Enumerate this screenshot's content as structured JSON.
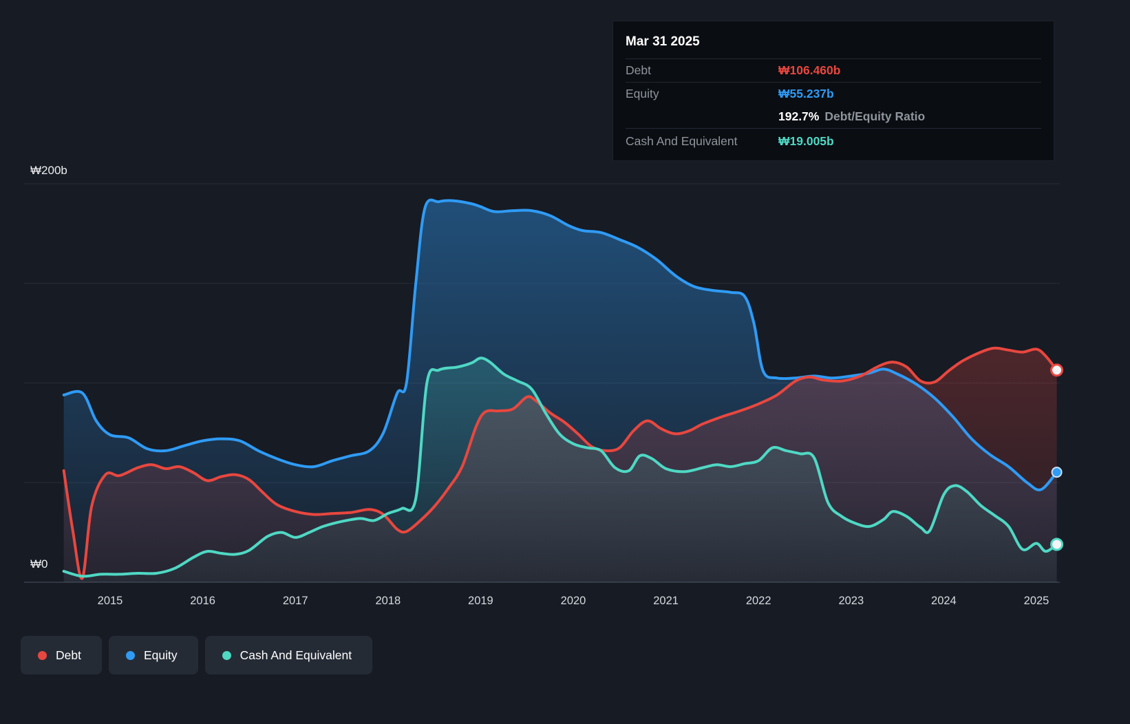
{
  "colors": {
    "debt": "#e8473f",
    "equity": "#2f9bf5",
    "cash": "#4fd8c4",
    "background": "#171b24",
    "tooltip_bg": "#0a0d12",
    "grid": "#262c35"
  },
  "tooltip": {
    "date": "Mar 31 2025",
    "debt": {
      "label": "Debt",
      "value": "₩106.460b"
    },
    "equity": {
      "label": "Equity",
      "value": "₩55.237b"
    },
    "ratio": {
      "value": "192.7%",
      "label": "Debt/Equity Ratio"
    },
    "cash": {
      "label": "Cash And Equivalent",
      "value": "₩19.005b"
    }
  },
  "y_axis": {
    "top_label": "₩200b",
    "bottom_label": "₩0"
  },
  "legend": {
    "items": [
      {
        "key": "debt",
        "label": "Debt"
      },
      {
        "key": "equity",
        "label": "Equity"
      },
      {
        "key": "cash",
        "label": "Cash And Equivalent"
      }
    ]
  },
  "chart_data": {
    "type": "area",
    "unit": "₩ billions (KRW)",
    "x_ticks": [
      2015,
      2016,
      2017,
      2018,
      2019,
      2020,
      2021,
      2022,
      2023,
      2024,
      2025
    ],
    "y_ticks": [
      0,
      50,
      100,
      150,
      200
    ],
    "ylim": [
      0,
      200
    ],
    "xlim": [
      2014.45,
      2025.3
    ],
    "legend_position": "bottom-left",
    "grid": true,
    "series": [
      {
        "name": "Equity",
        "color_key": "equity",
        "end_value": 55.237,
        "points": [
          [
            2014.5,
            94
          ],
          [
            2014.7,
            95
          ],
          [
            2014.85,
            81
          ],
          [
            2015.0,
            74
          ],
          [
            2015.2,
            72.5
          ],
          [
            2015.4,
            67
          ],
          [
            2015.6,
            66
          ],
          [
            2015.8,
            68.5
          ],
          [
            2016.0,
            71
          ],
          [
            2016.2,
            72
          ],
          [
            2016.4,
            71
          ],
          [
            2016.6,
            66
          ],
          [
            2016.8,
            62
          ],
          [
            2017.0,
            59
          ],
          [
            2017.2,
            58
          ],
          [
            2017.4,
            61
          ],
          [
            2017.6,
            63.5
          ],
          [
            2017.8,
            66
          ],
          [
            2017.95,
            75
          ],
          [
            2018.1,
            95
          ],
          [
            2018.2,
            100
          ],
          [
            2018.3,
            150
          ],
          [
            2018.4,
            188
          ],
          [
            2018.55,
            191
          ],
          [
            2018.7,
            191.5
          ],
          [
            2018.9,
            190
          ],
          [
            2019.0,
            188.5
          ],
          [
            2019.15,
            186
          ],
          [
            2019.35,
            186.5
          ],
          [
            2019.55,
            186.5
          ],
          [
            2019.75,
            184
          ],
          [
            2019.95,
            179
          ],
          [
            2020.1,
            176.5
          ],
          [
            2020.3,
            175.5
          ],
          [
            2020.5,
            172
          ],
          [
            2020.7,
            168
          ],
          [
            2020.9,
            162
          ],
          [
            2021.1,
            154
          ],
          [
            2021.3,
            148.5
          ],
          [
            2021.5,
            146.5
          ],
          [
            2021.7,
            145.5
          ],
          [
            2021.85,
            143.5
          ],
          [
            2021.95,
            130
          ],
          [
            2022.05,
            106
          ],
          [
            2022.2,
            102.5
          ],
          [
            2022.4,
            102.5
          ],
          [
            2022.6,
            103.5
          ],
          [
            2022.8,
            102.5
          ],
          [
            2023.0,
            103.5
          ],
          [
            2023.2,
            105
          ],
          [
            2023.35,
            107
          ],
          [
            2023.5,
            104.5
          ],
          [
            2023.7,
            99.5
          ],
          [
            2023.9,
            92.5
          ],
          [
            2024.1,
            83
          ],
          [
            2024.3,
            72
          ],
          [
            2024.5,
            64
          ],
          [
            2024.7,
            58
          ],
          [
            2024.9,
            50
          ],
          [
            2025.05,
            46.5
          ],
          [
            2025.22,
            55.237
          ]
        ]
      },
      {
        "name": "Debt",
        "color_key": "debt",
        "end_value": 106.46,
        "points": [
          [
            2014.5,
            56
          ],
          [
            2014.6,
            25
          ],
          [
            2014.7,
            2
          ],
          [
            2014.8,
            38
          ],
          [
            2014.95,
            54
          ],
          [
            2015.1,
            53.5
          ],
          [
            2015.3,
            57.5
          ],
          [
            2015.45,
            59
          ],
          [
            2015.6,
            57
          ],
          [
            2015.75,
            58
          ],
          [
            2015.9,
            55
          ],
          [
            2016.05,
            51
          ],
          [
            2016.2,
            53
          ],
          [
            2016.35,
            54
          ],
          [
            2016.5,
            51.5
          ],
          [
            2016.65,
            45
          ],
          [
            2016.8,
            39
          ],
          [
            2017.0,
            35.5
          ],
          [
            2017.2,
            34
          ],
          [
            2017.4,
            34.5
          ],
          [
            2017.6,
            35
          ],
          [
            2017.8,
            36.5
          ],
          [
            2017.95,
            34
          ],
          [
            2018.1,
            26.5
          ],
          [
            2018.2,
            25.5
          ],
          [
            2018.35,
            31
          ],
          [
            2018.5,
            38
          ],
          [
            2018.65,
            47
          ],
          [
            2018.8,
            58
          ],
          [
            2018.95,
            78
          ],
          [
            2019.05,
            85.5
          ],
          [
            2019.2,
            86
          ],
          [
            2019.35,
            87
          ],
          [
            2019.5,
            93
          ],
          [
            2019.6,
            91
          ],
          [
            2019.75,
            85
          ],
          [
            2019.9,
            80.5
          ],
          [
            2020.05,
            74.5
          ],
          [
            2020.2,
            68
          ],
          [
            2020.35,
            66
          ],
          [
            2020.5,
            67.5
          ],
          [
            2020.65,
            76
          ],
          [
            2020.8,
            81
          ],
          [
            2020.95,
            77
          ],
          [
            2021.1,
            74.5
          ],
          [
            2021.25,
            76
          ],
          [
            2021.4,
            79.5
          ],
          [
            2021.6,
            83
          ],
          [
            2021.8,
            86
          ],
          [
            2022.0,
            89.5
          ],
          [
            2022.2,
            94
          ],
          [
            2022.4,
            101
          ],
          [
            2022.55,
            103
          ],
          [
            2022.7,
            101.5
          ],
          [
            2022.9,
            101
          ],
          [
            2023.1,
            103.5
          ],
          [
            2023.3,
            108.5
          ],
          [
            2023.45,
            110.5
          ],
          [
            2023.6,
            108
          ],
          [
            2023.75,
            101
          ],
          [
            2023.9,
            100.5
          ],
          [
            2024.05,
            106
          ],
          [
            2024.2,
            111
          ],
          [
            2024.4,
            115.5
          ],
          [
            2024.55,
            117.5
          ],
          [
            2024.7,
            116.5
          ],
          [
            2024.85,
            115.5
          ],
          [
            2025.0,
            117
          ],
          [
            2025.1,
            113.5
          ],
          [
            2025.22,
            106.46
          ]
        ]
      },
      {
        "name": "Cash And Equivalent",
        "color_key": "cash",
        "end_value": 19.005,
        "points": [
          [
            2014.5,
            5.5
          ],
          [
            2014.7,
            3
          ],
          [
            2014.9,
            4
          ],
          [
            2015.1,
            4
          ],
          [
            2015.3,
            4.5
          ],
          [
            2015.5,
            4.5
          ],
          [
            2015.7,
            7
          ],
          [
            2015.9,
            12.5
          ],
          [
            2016.05,
            15.5
          ],
          [
            2016.2,
            14.5
          ],
          [
            2016.35,
            14
          ],
          [
            2016.5,
            16
          ],
          [
            2016.7,
            23
          ],
          [
            2016.85,
            25
          ],
          [
            2017.0,
            22.5
          ],
          [
            2017.15,
            25
          ],
          [
            2017.3,
            28
          ],
          [
            2017.5,
            30.5
          ],
          [
            2017.7,
            32
          ],
          [
            2017.85,
            31
          ],
          [
            2018.0,
            34.5
          ],
          [
            2018.15,
            37
          ],
          [
            2018.3,
            42
          ],
          [
            2018.42,
            100
          ],
          [
            2018.55,
            106.5
          ],
          [
            2018.75,
            108
          ],
          [
            2018.9,
            110
          ],
          [
            2019.0,
            112.5
          ],
          [
            2019.1,
            110.5
          ],
          [
            2019.25,
            104.5
          ],
          [
            2019.4,
            101
          ],
          [
            2019.55,
            97
          ],
          [
            2019.7,
            85
          ],
          [
            2019.85,
            74.5
          ],
          [
            2020.0,
            69.5
          ],
          [
            2020.15,
            67.5
          ],
          [
            2020.3,
            66
          ],
          [
            2020.45,
            57.5
          ],
          [
            2020.6,
            56
          ],
          [
            2020.72,
            63.5
          ],
          [
            2020.85,
            62
          ],
          [
            2021.0,
            57
          ],
          [
            2021.2,
            55.5
          ],
          [
            2021.4,
            57.5
          ],
          [
            2021.55,
            59
          ],
          [
            2021.7,
            58
          ],
          [
            2021.85,
            59.5
          ],
          [
            2022.0,
            61
          ],
          [
            2022.15,
            67.5
          ],
          [
            2022.3,
            66
          ],
          [
            2022.45,
            64.5
          ],
          [
            2022.6,
            62.5
          ],
          [
            2022.75,
            40
          ],
          [
            2022.9,
            33
          ],
          [
            2023.05,
            29.5
          ],
          [
            2023.2,
            28
          ],
          [
            2023.35,
            31.5
          ],
          [
            2023.45,
            35.5
          ],
          [
            2023.6,
            33
          ],
          [
            2023.75,
            27.5
          ],
          [
            2023.85,
            26
          ],
          [
            2024.0,
            44
          ],
          [
            2024.12,
            48.5
          ],
          [
            2024.25,
            45.5
          ],
          [
            2024.4,
            38.5
          ],
          [
            2024.55,
            33.5
          ],
          [
            2024.7,
            28
          ],
          [
            2024.85,
            16.5
          ],
          [
            2025.0,
            19.5
          ],
          [
            2025.1,
            15.5
          ],
          [
            2025.22,
            19.005
          ]
        ]
      }
    ]
  }
}
